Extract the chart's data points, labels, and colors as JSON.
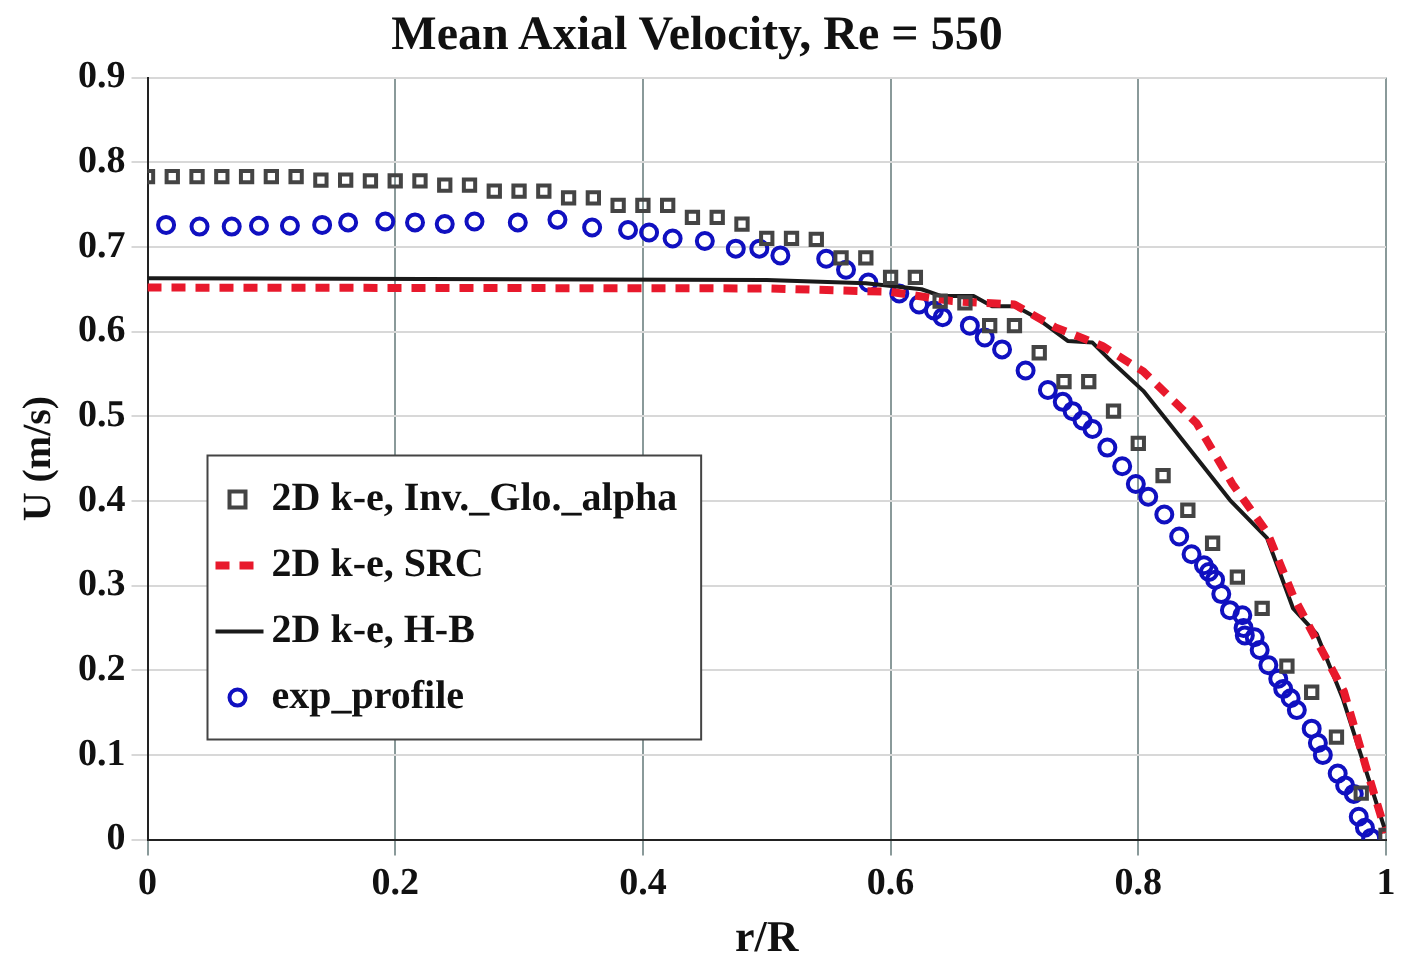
{
  "chart_data": {
    "type": "line",
    "title": "Mean Axial Velocity, Re = 550",
    "xlabel": "r/R",
    "ylabel": "U (m/s)",
    "xlim": [
      0,
      1
    ],
    "xticks": [
      0,
      0.2,
      0.4,
      0.6,
      0.8,
      1
    ],
    "ylim": [
      0,
      0.9
    ],
    "yticks": [
      0,
      0.1,
      0.2,
      0.3,
      0.4,
      0.5,
      0.6,
      0.7,
      0.8,
      0.9
    ],
    "grid": true,
    "legend": "bottom left",
    "series": [
      {
        "name": "2D k-e, Inv._Glo._alpha",
        "type": "scatter",
        "marker": "square",
        "color": "#444444",
        "x": [
          0,
          0.02,
          0.04,
          0.06,
          0.08,
          0.1,
          0.12,
          0.14,
          0.16,
          0.18,
          0.2,
          0.22,
          0.24,
          0.26,
          0.28,
          0.3,
          0.32,
          0.34,
          0.36,
          0.38,
          0.4,
          0.42,
          0.44,
          0.46,
          0.48,
          0.5,
          0.52,
          0.54,
          0.56,
          0.58,
          0.6,
          0.62,
          0.64,
          0.66,
          0.68,
          0.7,
          0.72,
          0.74,
          0.76,
          0.78,
          0.8,
          0.82,
          0.84,
          0.86,
          0.88,
          0.9,
          0.92,
          0.94,
          0.96,
          0.98,
          1
        ],
        "values": [
          0.783,
          0.783,
          0.783,
          0.783,
          0.783,
          0.783,
          0.783,
          0.779,
          0.779,
          0.778,
          0.778,
          0.778,
          0.773,
          0.773,
          0.766,
          0.766,
          0.766,
          0.758,
          0.758,
          0.749,
          0.749,
          0.749,
          0.735,
          0.735,
          0.727,
          0.71,
          0.71,
          0.709,
          0.687,
          0.687,
          0.664,
          0.664,
          0.636,
          0.634,
          0.607,
          0.607,
          0.575,
          0.541,
          0.541,
          0.506,
          0.468,
          0.43,
          0.389,
          0.35,
          0.31,
          0.273,
          0.205,
          0.174,
          0.121,
          0.055,
          0.005
        ]
      },
      {
        "name": "2D k-e, SRC",
        "marker": "none",
        "line_style": "dashed",
        "color": "#e8192c",
        "x": [
          0,
          0.5,
          0.6,
          0.65,
          0.7,
          0.733,
          0.771,
          0.804,
          0.847,
          0.876,
          0.904,
          0.925,
          0.944,
          0.966,
          0.985,
          1
        ],
        "values": [
          0.652,
          0.651,
          0.647,
          0.636,
          0.632,
          0.605,
          0.583,
          0.553,
          0.492,
          0.42,
          0.363,
          0.288,
          0.235,
          0.175,
          0.08,
          0.008
        ]
      },
      {
        "name": "2D k-e, H-B",
        "marker": "none",
        "line_style": "solid",
        "color": "#1a1a1a",
        "x": [
          0,
          0.5,
          0.58,
          0.625,
          0.641,
          0.667,
          0.682,
          0.701,
          0.717,
          0.743,
          0.763,
          0.776,
          0.804,
          0.828,
          0.874,
          0.904,
          0.925,
          0.944,
          0.965,
          1
        ],
        "values": [
          0.663,
          0.661,
          0.657,
          0.65,
          0.642,
          0.642,
          0.63,
          0.63,
          0.617,
          0.589,
          0.587,
          0.568,
          0.53,
          0.486,
          0.401,
          0.356,
          0.273,
          0.243,
          0.167,
          0.008
        ]
      },
      {
        "name": "exp_profile",
        "type": "scatter",
        "marker": "circle",
        "color": "#1010c0",
        "x": [
          0.015,
          0.042,
          0.068,
          0.09,
          0.115,
          0.141,
          0.162,
          0.192,
          0.216,
          0.24,
          0.264,
          0.299,
          0.331,
          0.359,
          0.388,
          0.405,
          0.424,
          0.45,
          0.475,
          0.494,
          0.511,
          0.548,
          0.564,
          0.582,
          0.607,
          0.623,
          0.635,
          0.642,
          0.664,
          0.676,
          0.69,
          0.709,
          0.727,
          0.739,
          0.747,
          0.755,
          0.763,
          0.775,
          0.787,
          0.798,
          0.808,
          0.821,
          0.833,
          0.843,
          0.853,
          0.857,
          0.862,
          0.867,
          0.874,
          0.884,
          0.885,
          0.886,
          0.894,
          0.898,
          0.905,
          0.913,
          0.917,
          0.923,
          0.928,
          0.94,
          0.945,
          0.949,
          0.961,
          0.967,
          0.974,
          0.978,
          0.983,
          0.988
        ],
        "values": [
          0.726,
          0.724,
          0.724,
          0.725,
          0.725,
          0.726,
          0.729,
          0.73,
          0.729,
          0.727,
          0.73,
          0.729,
          0.732,
          0.723,
          0.72,
          0.717,
          0.71,
          0.707,
          0.698,
          0.698,
          0.69,
          0.686,
          0.673,
          0.658,
          0.645,
          0.632,
          0.625,
          0.617,
          0.607,
          0.593,
          0.579,
          0.554,
          0.531,
          0.517,
          0.506,
          0.495,
          0.485,
          0.463,
          0.441,
          0.42,
          0.405,
          0.384,
          0.358,
          0.337,
          0.324,
          0.316,
          0.307,
          0.29,
          0.271,
          0.265,
          0.25,
          0.241,
          0.239,
          0.224,
          0.206,
          0.19,
          0.178,
          0.167,
          0.153,
          0.131,
          0.114,
          0.1,
          0.078,
          0.064,
          0.054,
          0.027,
          0.014,
          0.002
        ]
      }
    ]
  }
}
